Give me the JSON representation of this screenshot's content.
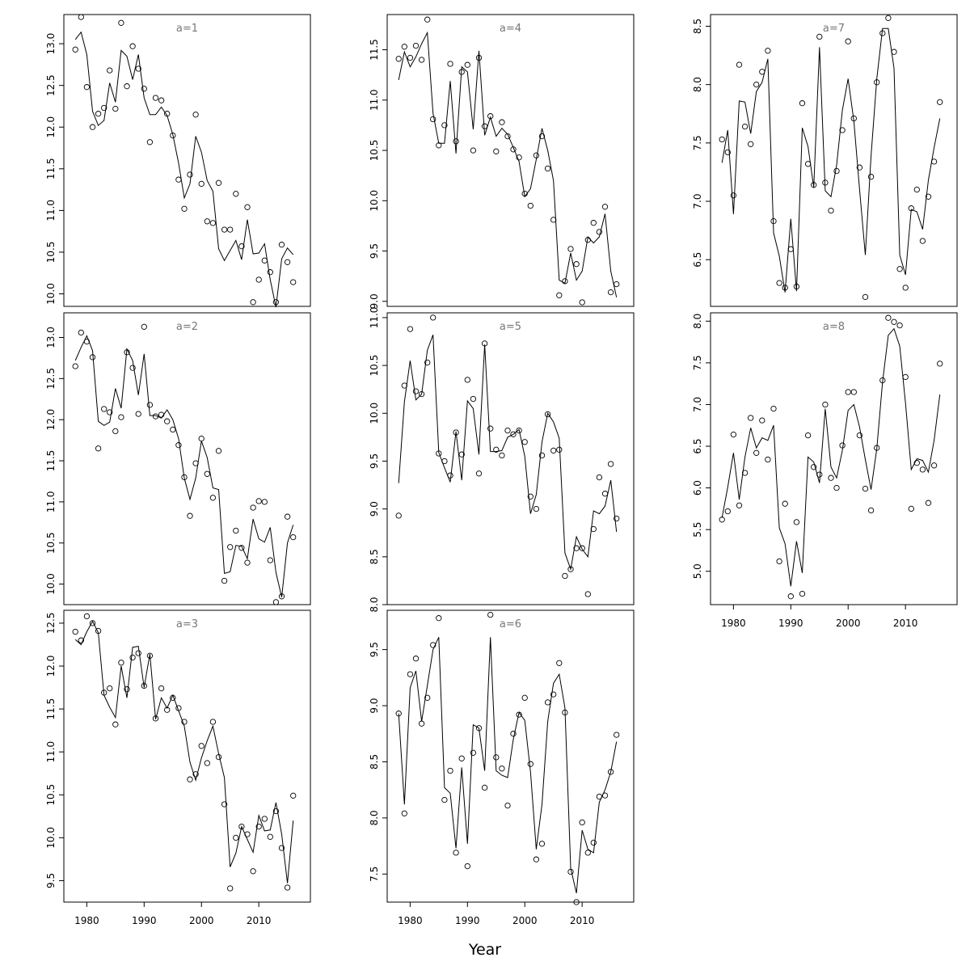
{
  "chart_data": {
    "type": "scatter",
    "xlabel": "Year",
    "ylabel": "",
    "title": "",
    "grid": false,
    "legend": "none",
    "xlim": [
      1976,
      2019
    ],
    "x_ticks": [
      1980,
      1990,
      2000,
      2010
    ],
    "x": [
      1978,
      1979,
      1980,
      1981,
      1982,
      1983,
      1984,
      1985,
      1986,
      1987,
      1988,
      1989,
      1990,
      1991,
      1992,
      1993,
      1994,
      1995,
      1996,
      1997,
      1998,
      1999,
      2000,
      2001,
      2002,
      2003,
      2004,
      2005,
      2006,
      2007,
      2008,
      2009,
      2010,
      2011,
      2012,
      2013,
      2014,
      2015,
      2016
    ],
    "panels": [
      {
        "title": "a=1",
        "ylim": [
          9.85,
          13.35
        ],
        "y_ticks": [
          10.0,
          10.5,
          11.0,
          11.5,
          12.0,
          12.5,
          13.0
        ],
        "observed": [
          12.93,
          13.32,
          12.48,
          12.0,
          12.16,
          12.23,
          12.68,
          12.22,
          13.25,
          12.49,
          12.97,
          12.7,
          12.46,
          11.82,
          12.35,
          12.32,
          12.16,
          11.9,
          11.37,
          11.02,
          11.43,
          12.15,
          11.32,
          10.87,
          10.85,
          11.33,
          10.77,
          10.77,
          11.2,
          10.57,
          11.04,
          9.9,
          10.17,
          10.4,
          10.26,
          9.9,
          10.59,
          10.38,
          10.14
        ],
        "fitted": [
          13.05,
          13.14,
          12.87,
          12.19,
          12.02,
          12.08,
          12.53,
          12.3,
          12.92,
          12.85,
          12.57,
          12.87,
          12.35,
          12.15,
          12.15,
          12.24,
          12.14,
          11.91,
          11.57,
          11.15,
          11.32,
          11.89,
          11.7,
          11.36,
          11.23,
          10.54,
          10.4,
          10.52,
          10.64,
          10.41,
          10.89,
          10.48,
          10.49,
          10.6,
          10.17,
          9.84,
          10.42,
          10.55,
          10.47
        ]
      },
      {
        "title": "a=2",
        "ylim": [
          9.75,
          13.3
        ],
        "y_ticks": [
          10.0,
          10.5,
          11.0,
          11.5,
          12.0,
          12.5,
          13.0
        ],
        "observed": [
          12.65,
          13.06,
          12.95,
          12.76,
          11.65,
          12.13,
          12.09,
          11.86,
          12.03,
          12.82,
          12.63,
          12.07,
          13.13,
          12.18,
          12.04,
          12.06,
          11.98,
          11.88,
          11.69,
          11.3,
          10.83,
          11.47,
          11.77,
          11.34,
          11.05,
          11.62,
          10.04,
          10.45,
          10.65,
          10.44,
          10.26,
          10.93,
          11.01,
          11.0,
          10.29,
          9.78,
          9.85,
          10.82,
          10.57
        ],
        "fitted": [
          12.72,
          12.88,
          13.02,
          12.84,
          11.98,
          11.93,
          11.97,
          12.38,
          12.14,
          12.86,
          12.72,
          12.3,
          12.8,
          12.05,
          12.05,
          12.02,
          12.12,
          12.0,
          11.77,
          11.29,
          11.03,
          11.29,
          11.74,
          11.54,
          11.17,
          11.15,
          10.13,
          10.15,
          10.47,
          10.46,
          10.31,
          10.79,
          10.55,
          10.51,
          10.69,
          10.14,
          9.84,
          10.5,
          10.72
        ]
      },
      {
        "title": "a=3",
        "ylim": [
          9.25,
          12.65
        ],
        "y_ticks": [
          9.5,
          10.0,
          10.5,
          11.0,
          11.5,
          12.0,
          12.5
        ],
        "observed": [
          12.4,
          12.3,
          12.58,
          12.5,
          12.41,
          11.69,
          11.74,
          11.32,
          12.04,
          11.73,
          12.1,
          12.15,
          11.77,
          12.12,
          11.39,
          11.74,
          11.49,
          11.63,
          11.51,
          11.35,
          10.68,
          10.74,
          11.07,
          10.87,
          11.35,
          10.94,
          10.39,
          9.41,
          10.0,
          10.13,
          10.04,
          9.61,
          10.13,
          10.22,
          10.01,
          10.31,
          9.88,
          9.42,
          10.49
        ],
        "fitted": [
          12.31,
          12.25,
          12.4,
          12.52,
          12.39,
          11.66,
          11.52,
          11.4,
          12.0,
          11.63,
          12.22,
          12.23,
          11.75,
          12.14,
          11.38,
          11.63,
          11.51,
          11.66,
          11.48,
          11.3,
          10.88,
          10.67,
          10.93,
          11.13,
          11.3,
          10.98,
          10.7,
          9.66,
          9.82,
          10.13,
          9.98,
          9.83,
          10.26,
          10.08,
          10.09,
          10.41,
          10.04,
          9.47,
          10.2
        ]
      },
      {
        "title": "a=4",
        "ylim": [
          8.95,
          11.85
        ],
        "y_ticks": [
          9.0,
          9.5,
          10.0,
          10.5,
          11.0,
          11.5
        ],
        "observed": [
          11.41,
          11.53,
          11.42,
          11.54,
          11.4,
          11.8,
          10.81,
          10.55,
          10.75,
          11.36,
          10.59,
          11.28,
          11.35,
          10.5,
          11.42,
          10.74,
          10.84,
          10.49,
          10.78,
          10.64,
          10.51,
          10.43,
          10.07,
          9.95,
          10.45,
          10.64,
          10.32,
          9.81,
          9.06,
          9.2,
          9.52,
          9.37,
          8.99,
          9.61,
          9.78,
          9.69,
          9.94,
          9.09,
          9.17
        ],
        "fitted": [
          11.2,
          11.48,
          11.33,
          11.43,
          11.56,
          11.67,
          10.87,
          10.57,
          10.57,
          11.19,
          10.47,
          11.33,
          11.28,
          10.71,
          11.49,
          10.65,
          10.83,
          10.64,
          10.72,
          10.66,
          10.53,
          10.39,
          10.04,
          10.12,
          10.41,
          10.72,
          10.5,
          10.2,
          9.21,
          9.18,
          9.48,
          9.21,
          9.3,
          9.64,
          9.58,
          9.64,
          9.87,
          9.3,
          9.04
        ]
      },
      {
        "title": "a=5",
        "ylim": [
          8.0,
          11.05
        ],
        "y_ticks": [
          8.0,
          8.5,
          9.0,
          9.5,
          10.0,
          10.5,
          11.0
        ],
        "observed": [
          8.93,
          10.29,
          10.88,
          10.23,
          10.2,
          10.53,
          11.0,
          9.58,
          9.5,
          9.35,
          9.8,
          9.57,
          10.35,
          10.15,
          9.37,
          10.73,
          9.84,
          9.62,
          9.56,
          9.82,
          9.78,
          9.82,
          9.7,
          9.13,
          9.0,
          9.56,
          9.99,
          9.61,
          9.62,
          8.3,
          8.37,
          8.59,
          8.59,
          8.11,
          8.79,
          9.33,
          9.16,
          9.47,
          8.9
        ],
        "fitted": [
          9.27,
          10.12,
          10.55,
          10.14,
          10.2,
          10.66,
          10.82,
          9.59,
          9.43,
          9.28,
          9.81,
          9.3,
          10.13,
          10.05,
          9.57,
          10.72,
          9.6,
          9.6,
          9.61,
          9.75,
          9.78,
          9.83,
          9.55,
          8.95,
          9.15,
          9.7,
          10.0,
          9.91,
          9.74,
          8.54,
          8.37,
          8.71,
          8.58,
          8.5,
          8.98,
          8.95,
          9.03,
          9.3,
          8.76
        ]
      },
      {
        "title": "a=6",
        "ylim": [
          7.25,
          9.85
        ],
        "y_ticks": [
          7.5,
          8.0,
          8.5,
          9.0,
          9.5
        ],
        "observed": [
          8.93,
          8.04,
          9.28,
          9.42,
          8.84,
          9.07,
          9.54,
          9.78,
          8.16,
          8.42,
          7.69,
          8.53,
          7.57,
          8.58,
          8.8,
          8.27,
          9.81,
          8.54,
          8.44,
          8.11,
          8.75,
          8.92,
          9.07,
          8.48,
          7.63,
          7.77,
          9.03,
          9.1,
          9.38,
          8.94,
          7.52,
          7.25,
          7.96,
          7.69,
          7.78,
          8.19,
          8.2,
          8.41,
          8.74
        ],
        "fitted": [
          8.93,
          8.12,
          9.16,
          9.31,
          8.86,
          9.18,
          9.5,
          9.61,
          8.27,
          8.22,
          7.73,
          8.45,
          7.77,
          8.83,
          8.8,
          8.42,
          9.61,
          8.42,
          8.38,
          8.36,
          8.7,
          8.94,
          8.87,
          8.41,
          7.72,
          8.12,
          8.86,
          9.2,
          9.28,
          8.98,
          7.55,
          7.33,
          7.89,
          7.72,
          7.69,
          8.14,
          8.25,
          8.41,
          8.68
        ]
      },
      {
        "title": "a=7",
        "ylim": [
          6.1,
          8.6
        ],
        "y_ticks": [
          6.5,
          7.0,
          7.5,
          8.0,
          8.5
        ],
        "observed": [
          7.53,
          7.42,
          7.05,
          8.17,
          7.64,
          7.49,
          8.0,
          8.11,
          8.29,
          6.83,
          6.3,
          6.26,
          6.59,
          6.27,
          7.84,
          7.32,
          7.14,
          8.41,
          7.16,
          6.92,
          7.26,
          7.61,
          8.37,
          7.71,
          7.29,
          6.18,
          7.21,
          8.02,
          8.44,
          8.57,
          8.28,
          6.42,
          6.26,
          6.94,
          7.1,
          6.66,
          7.04,
          7.34,
          7.85
        ],
        "fitted": [
          7.33,
          7.61,
          6.89,
          7.86,
          7.85,
          7.58,
          7.94,
          8.02,
          8.22,
          6.73,
          6.53,
          6.22,
          6.85,
          6.23,
          7.63,
          7.47,
          7.12,
          8.32,
          7.09,
          7.04,
          7.31,
          7.78,
          8.05,
          7.69,
          7.1,
          6.54,
          7.39,
          8.05,
          8.48,
          8.48,
          8.14,
          6.54,
          6.37,
          6.93,
          6.91,
          6.76,
          7.18,
          7.46,
          7.71
        ]
      },
      {
        "title": "a=8",
        "ylim": [
          4.6,
          8.1
        ],
        "y_ticks": [
          5.0,
          5.5,
          6.0,
          6.5,
          7.0,
          7.5,
          8.0
        ],
        "observed": [
          5.62,
          5.72,
          6.64,
          5.79,
          6.18,
          6.84,
          6.42,
          6.81,
          6.34,
          6.95,
          5.12,
          5.81,
          4.7,
          5.59,
          4.73,
          6.63,
          6.25,
          6.16,
          7.0,
          6.12,
          6.0,
          6.51,
          7.15,
          7.15,
          6.63,
          5.99,
          5.73,
          6.48,
          7.29,
          8.04,
          7.99,
          7.95,
          7.33,
          5.75,
          6.3,
          6.22,
          5.82,
          6.27,
          7.49
        ],
        "fitted": [
          5.64,
          6.01,
          6.42,
          5.86,
          6.37,
          6.72,
          6.48,
          6.6,
          6.57,
          6.75,
          5.52,
          5.33,
          4.82,
          5.36,
          4.98,
          6.37,
          6.31,
          6.06,
          6.95,
          6.25,
          6.12,
          6.45,
          6.93,
          7.0,
          6.73,
          6.34,
          5.98,
          6.47,
          7.27,
          7.83,
          7.91,
          7.7,
          7.02,
          6.22,
          6.35,
          6.33,
          6.19,
          6.57,
          7.12
        ]
      }
    ]
  }
}
